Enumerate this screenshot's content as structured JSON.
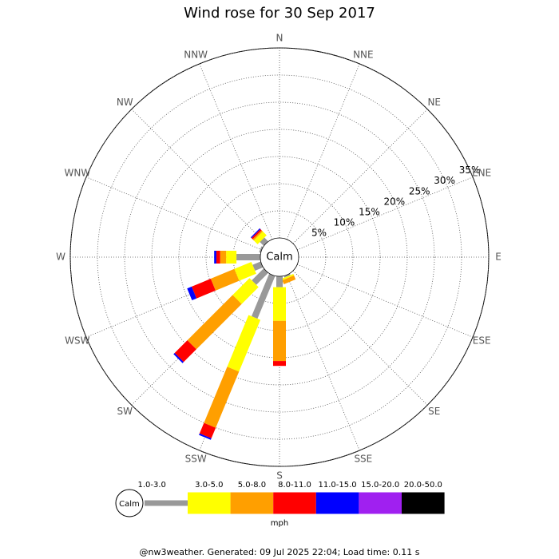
{
  "chart_data": {
    "type": "windrose",
    "title": "Wind rose for 30 Sep 2017",
    "categories": [
      "N",
      "NNE",
      "NE",
      "ENE",
      "E",
      "ESE",
      "SE",
      "SSE",
      "S",
      "SSW",
      "SW",
      "WSW",
      "W",
      "WNW",
      "NW",
      "NNW"
    ],
    "series": [
      {
        "name": "1.0-3.0",
        "color": "#999999",
        "values": [
          0,
          0,
          0,
          0,
          0,
          0,
          0,
          0.3,
          2.0,
          8.5,
          3.1,
          1.6,
          4.4,
          0.3,
          1.0,
          0
        ]
      },
      {
        "name": "3.0-5.0",
        "color": "#ffff00",
        "values": [
          0,
          0,
          0,
          0,
          0,
          0,
          0,
          0.3,
          6.2,
          10.3,
          4.4,
          3.4,
          1.9,
          0,
          1.0,
          0
        ]
      },
      {
        "name": "5.0-8.0",
        "color": "#ff9f00",
        "values": [
          0,
          0,
          0,
          0,
          0,
          0,
          0,
          0.8,
          7.4,
          11.2,
          11.8,
          4.7,
          1.1,
          0,
          0.3,
          0
        ]
      },
      {
        "name": "8.0-11.0",
        "color": "#ff0000",
        "values": [
          0,
          0,
          0,
          0,
          0,
          0,
          0,
          0,
          0.9,
          2.1,
          3.3,
          3.8,
          0.7,
          0,
          0.3,
          0
        ]
      },
      {
        "name": "11.0-15.0",
        "color": "#0000ff",
        "values": [
          0,
          0,
          0,
          0,
          0,
          0,
          0,
          0,
          0,
          0.3,
          0.3,
          0.9,
          0.4,
          0,
          0.2,
          0
        ]
      },
      {
        "name": "15.0-20.0",
        "color": "#a020f0",
        "values": [
          0,
          0,
          0,
          0,
          0,
          0,
          0,
          0,
          0,
          0,
          0,
          0,
          0,
          0,
          0,
          0
        ]
      },
      {
        "name": "20.0-50.0",
        "color": "#000000",
        "values": [
          0,
          0,
          0,
          0,
          0,
          0,
          0,
          0,
          0,
          0,
          0,
          0,
          0,
          0,
          0,
          0
        ]
      }
    ],
    "rlim": [
      0,
      35
    ],
    "rticks": [
      {
        "value": 5,
        "label": "5%"
      },
      {
        "value": 10,
        "label": "10%"
      },
      {
        "value": 15,
        "label": "15%"
      },
      {
        "value": 20,
        "label": "20%"
      },
      {
        "value": 25,
        "label": "25%"
      },
      {
        "value": 30,
        "label": "30%"
      },
      {
        "value": 35,
        "label": "35%"
      }
    ],
    "center_label": "Calm",
    "units": "mph",
    "footer": "@nw3weather. Generated: 09 Jul 2025 22:04; Load time: 0.11 s"
  }
}
